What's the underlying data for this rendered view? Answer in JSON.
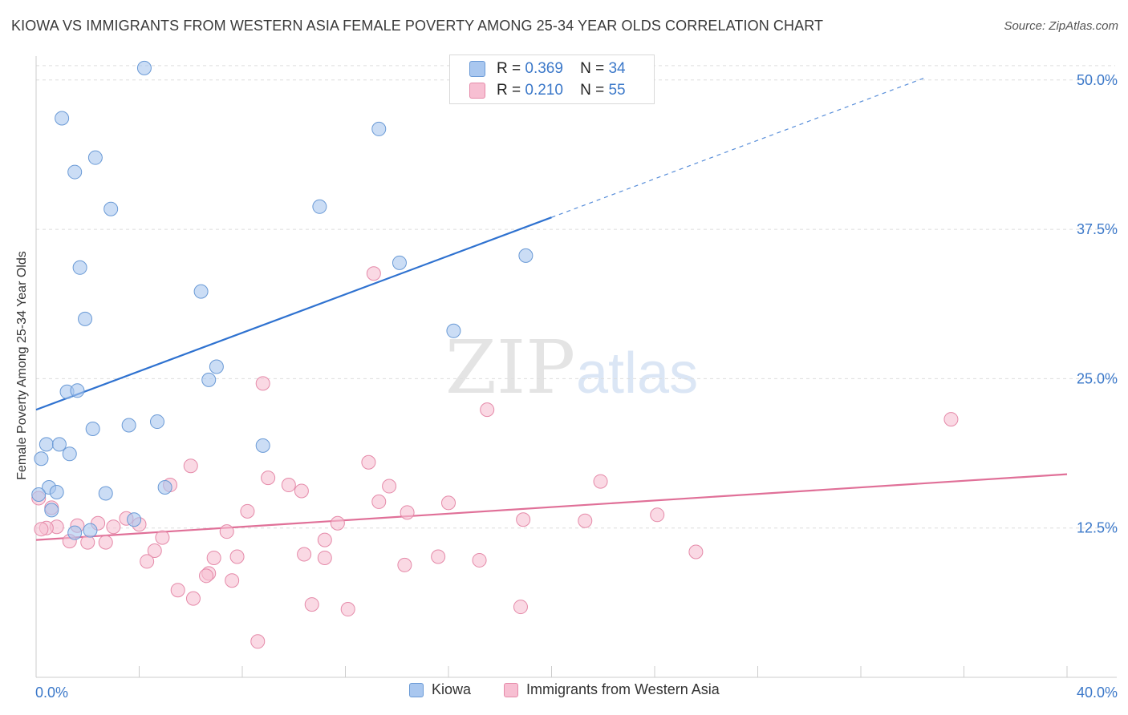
{
  "title": "KIOWA VS IMMIGRANTS FROM WESTERN ASIA FEMALE POVERTY AMONG 25-34 YEAR OLDS CORRELATION CHART",
  "source": "Source: ZipAtlas.com",
  "watermark": {
    "zip": "ZIP",
    "atlas": "atlas"
  },
  "stats": [
    {
      "r_label": "R =",
      "r_value": "0.369",
      "n_label": "N =",
      "n_value": "34",
      "color": "#a9c7ef",
      "border": "#6a9ad6"
    },
    {
      "r_label": "R =",
      "r_value": "0.210",
      "n_label": "N =",
      "n_value": "55",
      "color": "#f7bfd2",
      "border": "#e58aa9"
    }
  ],
  "chart_data": {
    "type": "scatter",
    "title": "KIOWA VS IMMIGRANTS FROM WESTERN ASIA FEMALE POVERTY AMONG 25-34 YEAR OLDS CORRELATION CHART",
    "xlabel": "",
    "ylabel": "Female Poverty Among 25-34 Year Olds",
    "xlim": [
      0,
      40
    ],
    "ylim": [
      0,
      50
    ],
    "x_tick_labels": [
      "0.0%",
      "40.0%"
    ],
    "y_ticks": [
      12.5,
      25.0,
      37.5,
      50.0
    ],
    "y_tick_labels": [
      "12.5%",
      "25.0%",
      "37.5%",
      "50.0%"
    ],
    "grid": true,
    "legend_position": "bottom",
    "series": [
      {
        "name": "Kiowa",
        "color": "#a9c7ef",
        "edge": "#6a9ad6",
        "trend_color": "#2f72d0",
        "trend": {
          "x0": 0,
          "y0": 22.4,
          "x1": 20,
          "y1": 38.5,
          "dash_x1": 34.5,
          "dash_y1": 50.2
        },
        "points": [
          [
            4.2,
            51.0
          ],
          [
            1.0,
            46.8
          ],
          [
            2.3,
            43.5
          ],
          [
            1.5,
            42.3
          ],
          [
            2.9,
            39.2
          ],
          [
            13.3,
            45.9
          ],
          [
            11.0,
            39.4
          ],
          [
            19.0,
            35.3
          ],
          [
            1.7,
            34.3
          ],
          [
            6.4,
            32.3
          ],
          [
            14.1,
            34.7
          ],
          [
            1.9,
            30.0
          ],
          [
            16.2,
            29.0
          ],
          [
            1.2,
            23.9
          ],
          [
            1.6,
            24.0
          ],
          [
            7.0,
            26.0
          ],
          [
            6.7,
            24.9
          ],
          [
            4.7,
            21.4
          ],
          [
            3.6,
            21.1
          ],
          [
            2.2,
            20.8
          ],
          [
            0.4,
            19.5
          ],
          [
            0.9,
            19.5
          ],
          [
            1.3,
            18.7
          ],
          [
            8.8,
            19.4
          ],
          [
            0.2,
            18.3
          ],
          [
            0.5,
            15.9
          ],
          [
            0.8,
            15.5
          ],
          [
            2.7,
            15.4
          ],
          [
            5.0,
            15.9
          ],
          [
            0.6,
            14.0
          ],
          [
            3.8,
            13.2
          ],
          [
            1.5,
            12.1
          ],
          [
            2.1,
            12.3
          ],
          [
            0.1,
            15.3
          ]
        ]
      },
      {
        "name": "Immigrants from Western Asia",
        "color": "#f7bfd2",
        "edge": "#e58aa9",
        "trend_color": "#e07098",
        "trend": {
          "x0": 0,
          "y0": 11.5,
          "x1": 40,
          "y1": 17.0
        },
        "points": [
          [
            13.1,
            33.8
          ],
          [
            8.8,
            24.6
          ],
          [
            17.5,
            22.4
          ],
          [
            35.5,
            21.6
          ],
          [
            12.9,
            18.0
          ],
          [
            6.0,
            17.7
          ],
          [
            9.0,
            16.7
          ],
          [
            21.9,
            16.4
          ],
          [
            5.2,
            16.1
          ],
          [
            9.8,
            16.1
          ],
          [
            13.7,
            16.0
          ],
          [
            10.3,
            15.6
          ],
          [
            13.3,
            14.7
          ],
          [
            16.0,
            14.6
          ],
          [
            8.2,
            13.9
          ],
          [
            14.4,
            13.8
          ],
          [
            24.1,
            13.6
          ],
          [
            18.9,
            13.2
          ],
          [
            21.3,
            13.1
          ],
          [
            11.7,
            12.9
          ],
          [
            3.5,
            13.3
          ],
          [
            2.4,
            12.9
          ],
          [
            4.0,
            12.8
          ],
          [
            1.6,
            12.7
          ],
          [
            3.0,
            12.6
          ],
          [
            0.8,
            12.6
          ],
          [
            0.4,
            12.5
          ],
          [
            7.4,
            12.2
          ],
          [
            4.9,
            11.7
          ],
          [
            1.3,
            11.4
          ],
          [
            2.0,
            11.3
          ],
          [
            2.7,
            11.3
          ],
          [
            11.2,
            11.5
          ],
          [
            4.6,
            10.6
          ],
          [
            25.6,
            10.5
          ],
          [
            10.4,
            10.3
          ],
          [
            11.2,
            10.0
          ],
          [
            15.6,
            10.1
          ],
          [
            17.2,
            9.8
          ],
          [
            7.8,
            10.1
          ],
          [
            6.9,
            10.0
          ],
          [
            4.3,
            9.7
          ],
          [
            14.3,
            9.4
          ],
          [
            6.7,
            8.7
          ],
          [
            6.6,
            8.5
          ],
          [
            7.6,
            8.1
          ],
          [
            5.5,
            7.3
          ],
          [
            6.1,
            6.6
          ],
          [
            10.7,
            6.1
          ],
          [
            12.1,
            5.7
          ],
          [
            18.8,
            5.9
          ],
          [
            8.6,
            3.0
          ],
          [
            0.6,
            14.2
          ],
          [
            0.1,
            15.0
          ],
          [
            0.2,
            12.4
          ]
        ]
      }
    ]
  }
}
